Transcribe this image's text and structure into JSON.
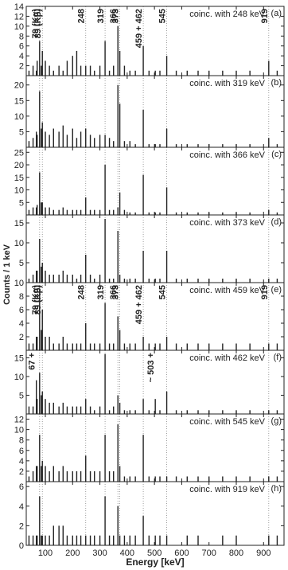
{
  "chart_data": [
    {
      "type": "spike",
      "panel_label": "(a)",
      "subtitle": "coinc. with 248 keV",
      "color": "#222222",
      "x": [
        40,
        55,
        67,
        70,
        79,
        85,
        89,
        100,
        115,
        130,
        150,
        165,
        180,
        200,
        215,
        230,
        248,
        265,
        280,
        300,
        319,
        335,
        350,
        366,
        373,
        390,
        410,
        430,
        459,
        480,
        503,
        520,
        545,
        580,
        620,
        660,
        700,
        750,
        800,
        850,
        919,
        950
      ],
      "values": [
        1,
        2,
        1,
        3,
        7,
        2,
        5,
        3,
        2,
        1,
        2,
        1,
        3,
        4,
        5,
        2,
        2,
        2,
        1,
        2,
        7,
        1,
        2,
        10,
        5,
        2,
        1,
        1,
        6,
        1,
        1,
        1,
        4,
        1,
        1,
        1,
        1,
        1,
        1,
        1,
        3,
        1
      ],
      "xlim": [
        30,
        975
      ],
      "ylim": [
        0,
        14
      ],
      "yticks": [
        2,
        4,
        6,
        8,
        10,
        12,
        14
      ],
      "reference_lines": [
        79,
        89,
        248,
        319,
        366,
        373,
        459,
        545,
        919
      ],
      "annotations": [
        {
          "text": "79 (Kα)",
          "x": 79
        },
        {
          "text": "89 (Kβ)",
          "x": 89
        },
        {
          "text": "248",
          "x": 248
        },
        {
          "text": "319",
          "x": 319
        },
        {
          "text": "366",
          "x": 366
        },
        {
          "text": "373",
          "x": 373
        },
        {
          "text": "459 + 462",
          "x": 459
        },
        {
          "text": "545",
          "x": 545
        },
        {
          "text": "919",
          "x": 919
        }
      ]
    },
    {
      "type": "spike",
      "panel_label": "(b)",
      "subtitle": "coinc. with 319 keV",
      "color": "#222222",
      "x": [
        40,
        55,
        67,
        70,
        79,
        85,
        89,
        100,
        115,
        130,
        150,
        165,
        180,
        200,
        215,
        230,
        248,
        265,
        280,
        300,
        319,
        335,
        350,
        366,
        373,
        390,
        410,
        430,
        459,
        480,
        503,
        520,
        545,
        580,
        620,
        660,
        700,
        750,
        800,
        850,
        919,
        950
      ],
      "values": [
        2,
        3,
        5,
        4,
        18,
        6,
        8,
        5,
        4,
        6,
        5,
        7,
        4,
        6,
        3,
        5,
        6,
        4,
        3,
        4,
        4,
        3,
        2,
        20,
        14,
        2,
        2,
        1,
        12,
        1,
        1,
        1,
        6,
        1,
        1,
        1,
        1,
        1,
        1,
        1,
        3,
        1
      ],
      "xlim": [
        30,
        975
      ],
      "ylim": [
        0,
        23
      ],
      "yticks": [
        5,
        10,
        15,
        20
      ],
      "reference_lines": [
        79,
        89,
        248,
        319,
        366,
        373,
        459,
        545,
        919
      ]
    },
    {
      "type": "spike",
      "panel_label": "(c)",
      "subtitle": "coinc. with 366 keV",
      "color": "#222222",
      "x": [
        40,
        55,
        67,
        70,
        79,
        85,
        89,
        100,
        115,
        130,
        150,
        165,
        180,
        200,
        215,
        230,
        248,
        265,
        280,
        300,
        319,
        335,
        350,
        366,
        373,
        390,
        410,
        430,
        459,
        480,
        503,
        520,
        545,
        580,
        620,
        660,
        700,
        750,
        800,
        850,
        919,
        950
      ],
      "values": [
        2,
        3,
        3,
        4,
        17,
        5,
        5,
        3,
        3,
        2,
        2,
        3,
        2,
        2,
        2,
        2,
        7,
        2,
        2,
        2,
        20,
        2,
        2,
        3,
        9,
        2,
        1,
        1,
        16,
        1,
        1,
        1,
        11,
        1,
        1,
        1,
        1,
        1,
        1,
        1,
        2,
        1
      ],
      "xlim": [
        30,
        975
      ],
      "ylim": [
        0,
        27
      ],
      "yticks": [
        5,
        10,
        15,
        20,
        25
      ],
      "reference_lines": [
        79,
        89,
        248,
        319,
        366,
        373,
        459,
        545,
        919
      ]
    },
    {
      "type": "spike",
      "panel_label": "(d)",
      "subtitle": "coinc. with 373 keV",
      "color": "#222222",
      "x": [
        40,
        55,
        67,
        70,
        79,
        85,
        89,
        100,
        115,
        130,
        150,
        165,
        180,
        200,
        215,
        230,
        248,
        265,
        280,
        300,
        319,
        335,
        350,
        366,
        373,
        390,
        410,
        430,
        459,
        480,
        503,
        520,
        545,
        580,
        620,
        660,
        700,
        750,
        800,
        850,
        919,
        950
      ],
      "values": [
        1,
        2,
        3,
        3,
        11,
        4,
        5,
        3,
        2,
        2,
        2,
        3,
        2,
        2,
        1,
        2,
        7,
        2,
        1,
        2,
        16,
        1,
        1,
        13,
        2,
        1,
        1,
        1,
        8,
        1,
        1,
        1,
        8,
        1,
        1,
        1,
        1,
        1,
        1,
        1,
        1,
        1
      ],
      "xlim": [
        30,
        975
      ],
      "ylim": [
        0,
        17
      ],
      "yticks": [
        5,
        10,
        15
      ],
      "reference_lines": [
        79,
        89,
        248,
        319,
        366,
        373,
        459,
        545,
        919
      ]
    },
    {
      "type": "spike",
      "panel_label": "(e)",
      "subtitle": "coinc. with 459 keV",
      "color": "#222222",
      "ylabel": "Counts / 1 keV",
      "x": [
        40,
        55,
        67,
        70,
        79,
        85,
        89,
        100,
        115,
        130,
        150,
        165,
        180,
        200,
        215,
        230,
        248,
        265,
        280,
        300,
        319,
        335,
        350,
        366,
        373,
        390,
        410,
        430,
        459,
        480,
        503,
        520,
        545,
        580,
        620,
        660,
        700,
        750,
        800,
        850,
        919,
        950
      ],
      "values": [
        1,
        1,
        2,
        2,
        9,
        3,
        6,
        2,
        2,
        1,
        1,
        2,
        1,
        1,
        1,
        1,
        4,
        1,
        1,
        1,
        7,
        1,
        1,
        5,
        3,
        1,
        1,
        1,
        2,
        1,
        1,
        1,
        2,
        1,
        1,
        1,
        1,
        1,
        1,
        1,
        1,
        1
      ],
      "xlim": [
        30,
        975
      ],
      "ylim": [
        0,
        10
      ],
      "yticks": [
        2,
        4,
        6,
        8,
        10
      ],
      "reference_lines": [
        79,
        89,
        248,
        319,
        366,
        373,
        459,
        545,
        919
      ],
      "annotations": [
        {
          "text": "79 (Kα)",
          "x": 79
        },
        {
          "text": "89 (Kβ)",
          "x": 89
        },
        {
          "text": "248",
          "x": 248
        },
        {
          "text": "319",
          "x": 319
        },
        {
          "text": "366",
          "x": 366
        },
        {
          "text": "373",
          "x": 373
        },
        {
          "text": "459 + 462",
          "x": 459
        },
        {
          "text": "545",
          "x": 545
        },
        {
          "text": "919",
          "x": 919
        }
      ]
    },
    {
      "type": "spike",
      "panel_label": "(f)",
      "subtitle": "coinc. with 462 keV",
      "color": "#222222",
      "x": [
        40,
        55,
        67,
        70,
        79,
        85,
        89,
        100,
        115,
        130,
        150,
        165,
        180,
        200,
        215,
        230,
        248,
        265,
        280,
        300,
        319,
        335,
        350,
        366,
        373,
        390,
        410,
        430,
        459,
        480,
        503,
        520,
        545,
        580,
        620,
        660,
        700,
        750,
        800,
        850,
        919,
        950
      ],
      "values": [
        2,
        2,
        9,
        4,
        11,
        5,
        6,
        4,
        3,
        3,
        2,
        3,
        2,
        2,
        2,
        2,
        4,
        2,
        1,
        2,
        16,
        1,
        2,
        5,
        3,
        1,
        1,
        1,
        4,
        1,
        4,
        1,
        6,
        1,
        1,
        1,
        1,
        1,
        1,
        1,
        1,
        1
      ],
      "xlim": [
        30,
        975
      ],
      "ylim": [
        0,
        17
      ],
      "yticks": [
        5,
        10,
        15
      ],
      "reference_lines": [
        79,
        89,
        248,
        319,
        366,
        373,
        459,
        545,
        919
      ],
      "annotations": [
        {
          "text": "67 +",
          "x": 67
        },
        {
          "text": "~ 503 +",
          "x": 503
        }
      ]
    },
    {
      "type": "spike",
      "panel_label": "(g)",
      "subtitle": "coinc. with 545 keV",
      "color": "#222222",
      "x": [
        40,
        55,
        67,
        70,
        79,
        85,
        89,
        100,
        115,
        130,
        150,
        165,
        180,
        200,
        215,
        230,
        248,
        265,
        280,
        300,
        319,
        335,
        350,
        366,
        373,
        390,
        410,
        430,
        459,
        480,
        503,
        520,
        545,
        580,
        620,
        660,
        700,
        750,
        800,
        850,
        919,
        950
      ],
      "values": [
        1,
        2,
        3,
        3,
        9,
        3,
        4,
        3,
        2,
        3,
        2,
        3,
        2,
        2,
        2,
        2,
        5,
        2,
        2,
        2,
        9,
        2,
        2,
        11,
        3,
        1,
        1,
        1,
        9,
        1,
        1,
        1,
        1,
        1,
        1,
        1,
        1,
        1,
        1,
        1,
        1,
        1
      ],
      "xlim": [
        30,
        975
      ],
      "ylim": [
        0,
        13
      ],
      "yticks": [
        2,
        4,
        6,
        8,
        10,
        12
      ],
      "reference_lines": [
        79,
        89,
        248,
        319,
        366,
        373,
        459,
        545,
        919
      ]
    },
    {
      "type": "spike",
      "panel_label": "(h)",
      "subtitle": "coinc. with 919 keV",
      "color": "#222222",
      "xlabel": "Energy [keV]",
      "x": [
        40,
        55,
        67,
        70,
        79,
        85,
        89,
        100,
        115,
        130,
        150,
        165,
        180,
        200,
        215,
        230,
        248,
        265,
        280,
        300,
        319,
        335,
        350,
        366,
        373,
        390,
        410,
        430,
        459,
        480,
        503,
        520,
        545,
        580,
        620,
        660,
        700,
        750,
        800,
        850,
        919,
        950
      ],
      "values": [
        1,
        1,
        1,
        1,
        5,
        1,
        1,
        1,
        1,
        2,
        2,
        2,
        1,
        1,
        1,
        1,
        1,
        1,
        1,
        1,
        5,
        1,
        1,
        4,
        1,
        1,
        1,
        1,
        3,
        1,
        1,
        1,
        1,
        0,
        1,
        1,
        0,
        1,
        1,
        0,
        1,
        1
      ],
      "xlim": [
        30,
        975
      ],
      "ylim": [
        0,
        6.5
      ],
      "yticks": [
        0,
        2,
        4,
        6
      ],
      "xticks": [
        100,
        200,
        300,
        400,
        500,
        600,
        700,
        800,
        900
      ],
      "reference_lines": [
        79,
        89,
        248,
        319,
        366,
        373,
        459,
        545,
        919
      ]
    }
  ]
}
